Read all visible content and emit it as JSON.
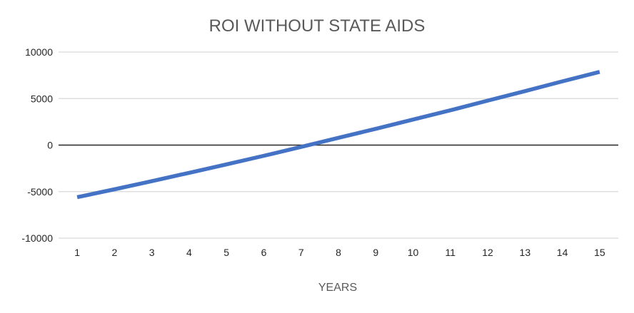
{
  "chart_data": {
    "type": "line",
    "title": "ROI WITHOUT STATE AIDS",
    "xlabel": "YEARS",
    "ylabel": "",
    "categories": [
      "1",
      "2",
      "3",
      "4",
      "5",
      "6",
      "7",
      "8",
      "9",
      "10",
      "11",
      "12",
      "13",
      "14",
      "15"
    ],
    "ylim": [
      -10000,
      10000
    ],
    "yticks": [
      10000,
      5000,
      0,
      -5000,
      -10000
    ],
    "grid": true,
    "legend": "none",
    "series": [
      {
        "color": "#4472c4",
        "values": [
          -5600,
          -4750,
          -3880,
          -2980,
          -2080,
          -1150,
          -200,
          780,
          1750,
          2740,
          3740,
          4780,
          5800,
          6850,
          7870
        ]
      }
    ]
  }
}
